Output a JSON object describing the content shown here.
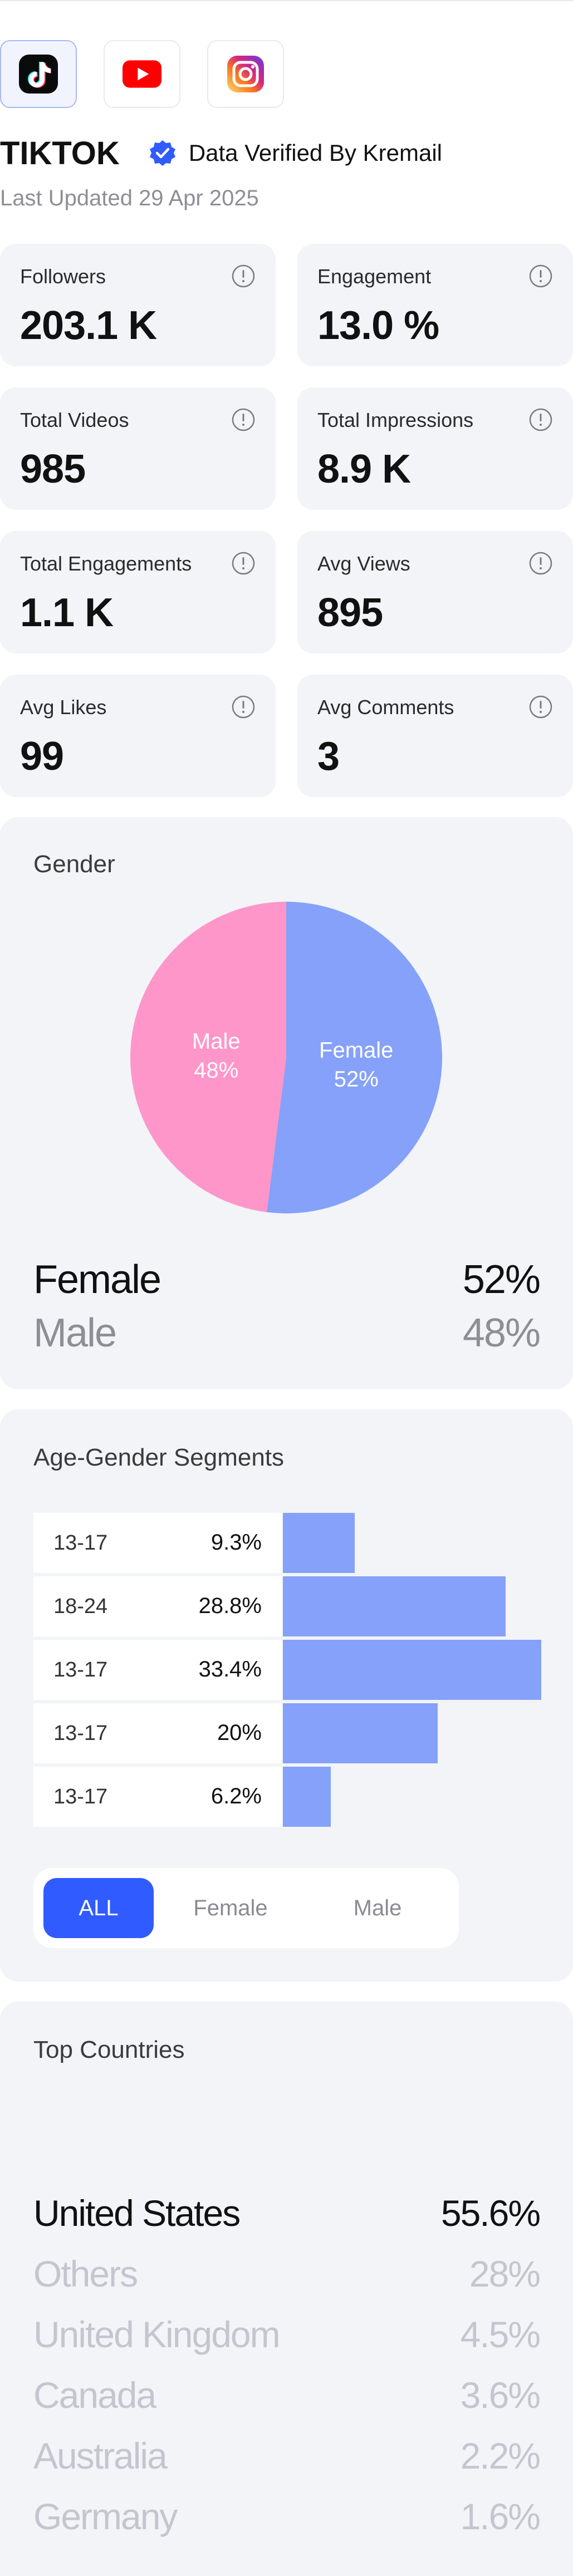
{
  "platforms": [
    {
      "name": "tiktok-icon",
      "active": true
    },
    {
      "name": "youtube-icon",
      "active": false
    },
    {
      "name": "instagram-icon",
      "active": false
    }
  ],
  "profile": {
    "platform_name": "TIKTOK",
    "verified_text": "Data Verified By Kremail",
    "last_updated": "Last Updated 29 Apr 2025"
  },
  "stats": [
    {
      "label": "Followers",
      "value": "203.1 K"
    },
    {
      "label": "Engagement",
      "value": "13.0 %"
    },
    {
      "label": "Total Videos",
      "value": "985"
    },
    {
      "label": "Total Impressions",
      "value": "8.9 K"
    },
    {
      "label": "Total Engagements",
      "value": "1.1 K"
    },
    {
      "label": "Avg Views",
      "value": "895"
    },
    {
      "label": "Avg Likes",
      "value": "99"
    },
    {
      "label": "Avg Comments",
      "value": "3"
    }
  ],
  "gender": {
    "title": "Gender",
    "slices": [
      {
        "name": "Female",
        "percent": 52,
        "label_name": "Female",
        "label_pct": "52%",
        "color": "#85a1f9"
      },
      {
        "name": "Male",
        "percent": 48,
        "label_name": "Male",
        "label_pct": "48%",
        "color": "#ff96ca"
      }
    ],
    "legend": [
      {
        "name": "Female",
        "value": "52%",
        "color": "#111111"
      },
      {
        "name": "Male",
        "value": "48%",
        "color": "#8e8e96"
      }
    ]
  },
  "age_gender": {
    "title": "Age-Gender Segments",
    "rows": [
      {
        "age": "13-17",
        "pct": "9.3%",
        "value": 9.3
      },
      {
        "age": "18-24",
        "pct": "28.8%",
        "value": 28.8
      },
      {
        "age": "13-17",
        "pct": "33.4%",
        "value": 33.4
      },
      {
        "age": "13-17",
        "pct": "20%",
        "value": 20
      },
      {
        "age": "13-17",
        "pct": "6.2%",
        "value": 6.2
      }
    ],
    "filters": [
      {
        "label": "ALL",
        "active": true
      },
      {
        "label": "Female",
        "active": false
      },
      {
        "label": "Male",
        "active": false
      }
    ]
  },
  "countries": {
    "title": "Top Countries",
    "items": [
      {
        "name": "United States",
        "value": "55.6%"
      },
      {
        "name": "Others",
        "value": "28%"
      },
      {
        "name": "United Kingdom",
        "value": "4.5%"
      },
      {
        "name": "Canada",
        "value": "3.6%"
      },
      {
        "name": "Australia",
        "value": "2.2%"
      },
      {
        "name": "Germany",
        "value": "1.6%"
      }
    ]
  },
  "colors": {
    "accent": "#2f5bff",
    "bar": "#85a1f9",
    "male_pink": "#ff96ca",
    "card_bg": "#f3f4f8",
    "verified_blue": "#2f5bff"
  }
}
